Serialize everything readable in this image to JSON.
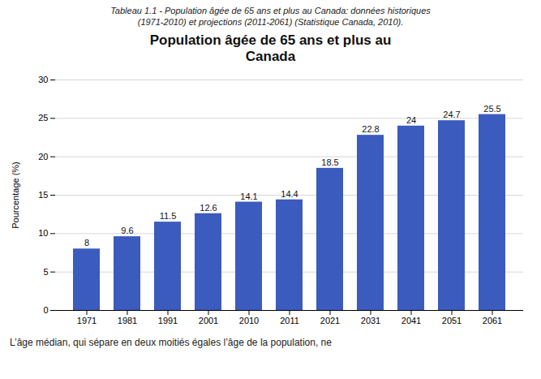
{
  "chart_data": {
    "type": "bar",
    "title": "Population âgée de 65 ans et plus au\nCanada",
    "caption": [
      "Tableau 1.1 - Population âgée de 65 ans et plus au Canada: données historiques",
      "(1971-2010) et projections (2011-2061) (Statistique Canada, 2010)."
    ],
    "footnote": "L’âge médian, qui sépare en deux moitiés égales l’âge de la population, ne",
    "ylabel": "Pourcentage (%)",
    "categories": [
      "1971",
      "1981",
      "1991",
      "2001",
      "2010",
      "2011",
      "2021",
      "2031",
      "2041",
      "2051",
      "2061"
    ],
    "values": [
      8.0,
      9.6,
      11.5,
      12.6,
      14.1,
      14.4,
      18.5,
      22.8,
      24.0,
      24.7,
      25.5
    ],
    "color": "#3B5BBE",
    "ylim": [
      0,
      30
    ],
    "yticks": [
      0,
      5,
      10,
      15,
      20,
      25,
      30
    ],
    "grid": true,
    "data_labels": true
  }
}
